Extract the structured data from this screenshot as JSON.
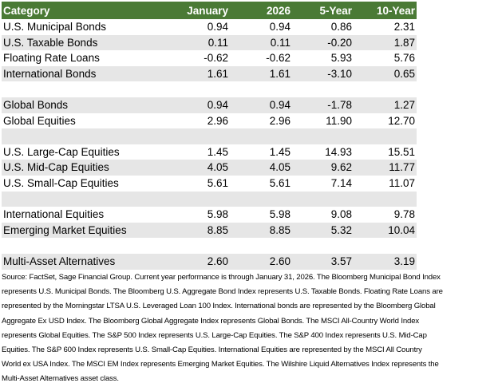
{
  "table": {
    "headers": [
      "Category",
      "January",
      "2026",
      "5-Year",
      "10-Year"
    ],
    "rows": [
      {
        "category": "U.S. Municipal Bonds",
        "values": [
          "0.94",
          "0.94",
          "0.86",
          "2.31"
        ]
      },
      {
        "category": "U.S. Taxable Bonds",
        "values": [
          "0.11",
          "0.11",
          "-0.20",
          "1.87"
        ]
      },
      {
        "category": "Floating Rate Loans",
        "values": [
          "-0.62",
          "-0.62",
          "5.93",
          "5.76"
        ]
      },
      {
        "category": "International Bonds",
        "values": [
          "1.61",
          "1.61",
          "-3.10",
          "0.65"
        ]
      },
      {
        "category": "",
        "values": [
          "",
          "",
          "",
          ""
        ]
      },
      {
        "category": "Global Bonds",
        "values": [
          "0.94",
          "0.94",
          "-1.78",
          "1.27"
        ]
      },
      {
        "category": "Global Equities",
        "values": [
          "2.96",
          "2.96",
          "11.90",
          "12.70"
        ]
      },
      {
        "category": "",
        "values": [
          "",
          "",
          "",
          ""
        ]
      },
      {
        "category": "U.S. Large-Cap Equities",
        "values": [
          "1.45",
          "1.45",
          "14.93",
          "15.51"
        ]
      },
      {
        "category": "U.S. Mid-Cap Equities",
        "values": [
          "4.05",
          "4.05",
          "9.62",
          "11.77"
        ]
      },
      {
        "category": "U.S. Small-Cap Equities",
        "values": [
          "5.61",
          "5.61",
          "7.14",
          "11.07"
        ]
      },
      {
        "category": "",
        "values": [
          "",
          "",
          "",
          ""
        ]
      },
      {
        "category": "International Equities",
        "values": [
          "5.98",
          "5.98",
          "9.08",
          "9.78"
        ]
      },
      {
        "category": "Emerging Market Equities",
        "values": [
          "8.85",
          "8.85",
          "5.32",
          "10.04"
        ]
      },
      {
        "category": "",
        "values": [
          "",
          "",
          "",
          ""
        ]
      },
      {
        "category": "Multi-Asset Alternatives",
        "values": [
          "2.60",
          "2.60",
          "3.57",
          "3.19"
        ]
      }
    ]
  },
  "source_lines": [
    "Source: FactSet, Sage Financial Group. Current year performance is through January 31, 2026. The Bloomberg Municipal Bond Index",
    "represents U.S. Municipal Bonds. The Bloomberg U.S. Aggregate Bond Index represents U.S. Taxable Bonds. Floating Rate Loans are",
    "represented by the Morningstar LTSA U.S. Leveraged Loan 100 Index. International bonds are represented by the Bloomberg Global",
    "Aggregate Ex USD Index. The Bloomberg Global Aggregate Index represents Global Bonds. The MSCI All-Country World Index",
    "represents Global Equities. The S&P 500 Index represents U.S. Large-Cap Equities. The S&P 400 Index represents U.S. Mid-Cap",
    "Equities. The S&P 600 Index represents U.S. Small-Cap Equities. International Equities are represented by the MSCI All Country",
    "World ex USA Index. The MSCI EM Index represents Emerging Market Equities. The Wilshire Liquid Alternatives Index represents the",
    "Multi-Asset Alternatives asset class."
  ],
  "colors": {
    "header_bg": "#4a7a35",
    "stripe": "#e6e6e6"
  }
}
